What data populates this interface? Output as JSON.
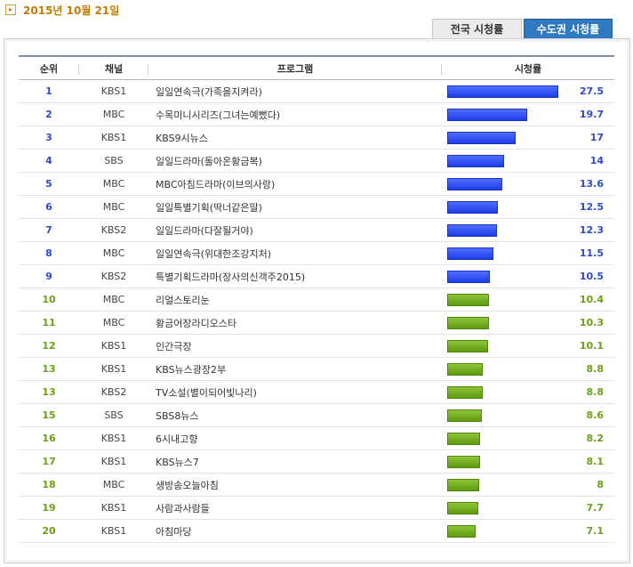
{
  "date_label": "2015년 10월 21일",
  "tabs": [
    {
      "label": "전국 시청률",
      "active": false
    },
    {
      "label": "수도권 시청률",
      "active": true
    }
  ],
  "table": {
    "headers": {
      "rank": "순위",
      "channel": "채널",
      "program": "프로그램",
      "rating": "시청률"
    },
    "max_rating": 27.5,
    "rows": [
      {
        "rank": "1",
        "channel": "KBS1",
        "program": "일일연속극(가족을지켜라)",
        "rating": "27.5",
        "value": 27.5,
        "color": "blue"
      },
      {
        "rank": "2",
        "channel": "MBC",
        "program": "수목미니시리즈(그녀는예뻤다)",
        "rating": "19.7",
        "value": 19.7,
        "color": "blue"
      },
      {
        "rank": "3",
        "channel": "KBS1",
        "program": "KBS9시뉴스",
        "rating": "17",
        "value": 17,
        "color": "blue"
      },
      {
        "rank": "4",
        "channel": "SBS",
        "program": "일일드라마(돌아온황금복)",
        "rating": "14",
        "value": 14,
        "color": "blue"
      },
      {
        "rank": "5",
        "channel": "MBC",
        "program": "MBC아침드라마(이브의사랑)",
        "rating": "13.6",
        "value": 13.6,
        "color": "blue"
      },
      {
        "rank": "6",
        "channel": "MBC",
        "program": "일일특별기획(딱너같은딸)",
        "rating": "12.5",
        "value": 12.5,
        "color": "blue"
      },
      {
        "rank": "7",
        "channel": "KBS2",
        "program": "일일드라마(다잘될거야)",
        "rating": "12.3",
        "value": 12.3,
        "color": "blue"
      },
      {
        "rank": "8",
        "channel": "MBC",
        "program": "일일연속극(위대한조강지처)",
        "rating": "11.5",
        "value": 11.5,
        "color": "blue"
      },
      {
        "rank": "9",
        "channel": "KBS2",
        "program": "특별기획드라마(장사의신객주2015)",
        "rating": "10.5",
        "value": 10.5,
        "color": "blue"
      },
      {
        "rank": "10",
        "channel": "MBC",
        "program": "리얼스토리눈",
        "rating": "10.4",
        "value": 10.4,
        "color": "green"
      },
      {
        "rank": "11",
        "channel": "MBC",
        "program": "황금어장라디오스타",
        "rating": "10.3",
        "value": 10.3,
        "color": "green"
      },
      {
        "rank": "12",
        "channel": "KBS1",
        "program": "인간극장",
        "rating": "10.1",
        "value": 10.1,
        "color": "green"
      },
      {
        "rank": "13",
        "channel": "KBS1",
        "program": "KBS뉴스광장2부",
        "rating": "8.8",
        "value": 8.8,
        "color": "green"
      },
      {
        "rank": "13",
        "channel": "KBS2",
        "program": "TV소설(별이되어빛나리)",
        "rating": "8.8",
        "value": 8.8,
        "color": "green"
      },
      {
        "rank": "15",
        "channel": "SBS",
        "program": "SBS8뉴스",
        "rating": "8.6",
        "value": 8.6,
        "color": "green"
      },
      {
        "rank": "16",
        "channel": "KBS1",
        "program": "6시내고향",
        "rating": "8.2",
        "value": 8.2,
        "color": "green"
      },
      {
        "rank": "17",
        "channel": "KBS1",
        "program": "KBS뉴스7",
        "rating": "8.1",
        "value": 8.1,
        "color": "green"
      },
      {
        "rank": "18",
        "channel": "MBC",
        "program": "생방송오늘아침",
        "rating": "8",
        "value": 8,
        "color": "green"
      },
      {
        "rank": "19",
        "channel": "KBS1",
        "program": "사람과사람들",
        "rating": "7.7",
        "value": 7.7,
        "color": "green"
      },
      {
        "rank": "20",
        "channel": "KBS1",
        "program": "아침마당",
        "rating": "7.1",
        "value": 7.1,
        "color": "green"
      }
    ]
  }
}
